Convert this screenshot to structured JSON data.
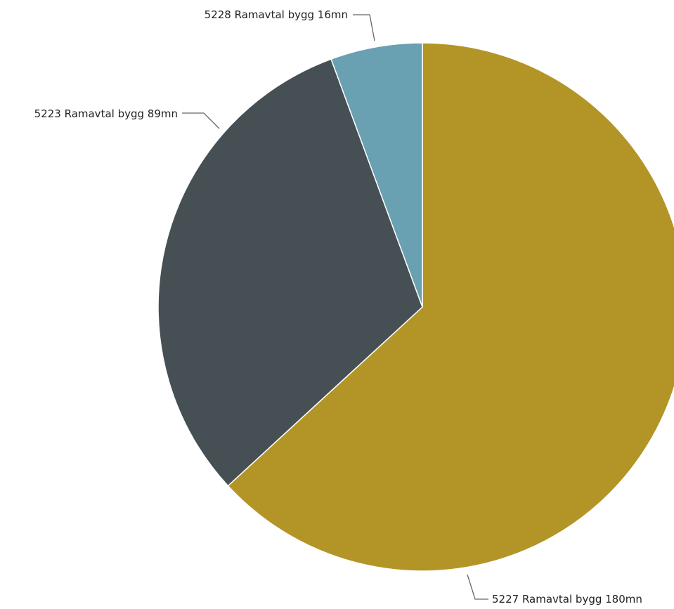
{
  "chart_data": {
    "type": "pie",
    "categories": [
      "5227 Ramavtal bygg",
      "5223 Ramavtal bygg",
      "5228 Ramavtal bygg"
    ],
    "values": [
      180,
      89,
      16
    ],
    "unit": "mn",
    "labels": [
      "5227 Ramavtal bygg 180mn",
      "5223 Ramavtal bygg 89mn",
      "5228 Ramavtal bygg 16mn"
    ],
    "colors": [
      "#B39527",
      "#464F53",
      "#69A0B2"
    ],
    "start_angle_deg": 0,
    "direction": "clockwise",
    "legend": "none"
  }
}
